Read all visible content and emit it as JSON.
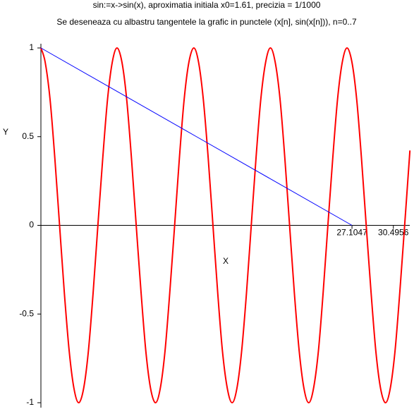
{
  "chart_data": {
    "type": "line",
    "title": "sin:=x->sin(x), aproximatia initiala x0=1.61,  precizia = 1/1000",
    "subtitle": "Se deseneaza cu albastru tangentele la grafic in punctele (x[n], sin(x[n])), n=0..7",
    "x_label": "X",
    "y_label": "Y",
    "xlim": [
      1.61,
      31.84
    ],
    "ylim": [
      -1,
      1
    ],
    "xticks": [
      27.1047,
      30.4956
    ],
    "yticks": [
      -1,
      -0.5,
      0,
      0.5,
      1
    ],
    "series": [
      {
        "color": "#ff0000",
        "x": [
          1.61,
          1.96,
          2.36,
          2.75,
          3.14,
          3.53,
          3.93,
          4.32,
          4.71,
          5.11,
          5.5,
          5.89,
          6.28,
          6.68,
          7.07,
          7.46,
          7.85,
          8.25,
          8.64,
          9.03,
          9.42,
          9.82,
          10.21,
          10.6,
          11.0,
          11.39,
          11.78,
          12.17,
          12.57,
          12.96,
          13.35,
          13.74,
          14.14,
          14.53,
          14.92,
          15.32,
          15.71,
          16.1,
          16.49,
          16.89,
          17.28,
          17.67,
          18.06,
          18.46,
          18.85,
          19.24,
          19.63,
          20.03,
          20.42,
          20.81,
          21.21,
          21.6,
          21.99,
          22.38,
          22.78,
          23.17,
          23.56,
          23.95,
          24.35,
          24.74,
          25.13,
          25.53,
          25.92,
          26.31,
          26.7,
          27.1,
          27.49,
          27.88,
          28.27,
          28.67,
          29.06,
          29.45,
          29.85,
          30.24,
          30.63,
          31.02,
          31.42,
          31.81,
          31.84
        ],
        "values": [
          1,
          0.92,
          0.71,
          0.38,
          0,
          -0.38,
          -0.71,
          -0.92,
          -1,
          -0.92,
          -0.71,
          -0.38,
          0,
          0.38,
          0.71,
          0.92,
          1,
          0.92,
          0.71,
          0.38,
          0,
          -0.38,
          -0.71,
          -0.92,
          -1,
          -0.92,
          -0.71,
          -0.38,
          0,
          0.38,
          0.71,
          0.92,
          1,
          0.92,
          0.71,
          0.38,
          0,
          -0.38,
          -0.71,
          -0.92,
          -1,
          -0.92,
          -0.71,
          -0.38,
          0,
          0.38,
          0.71,
          0.92,
          1,
          0.92,
          0.71,
          0.38,
          0,
          -0.38,
          -0.71,
          -0.92,
          -1,
          -0.92,
          -0.71,
          -0.38,
          0,
          0.38,
          0.71,
          0.92,
          1,
          0.92,
          0.71,
          0.38,
          0,
          -0.38,
          -0.71,
          -0.92,
          -1,
          -0.92,
          -0.71,
          -0.38,
          0,
          0.38,
          0.41
        ]
      },
      {
        "color": "#0000ff",
        "x": [
          1.61,
          27.1047
        ],
        "values": [
          1,
          0
        ]
      }
    ]
  }
}
